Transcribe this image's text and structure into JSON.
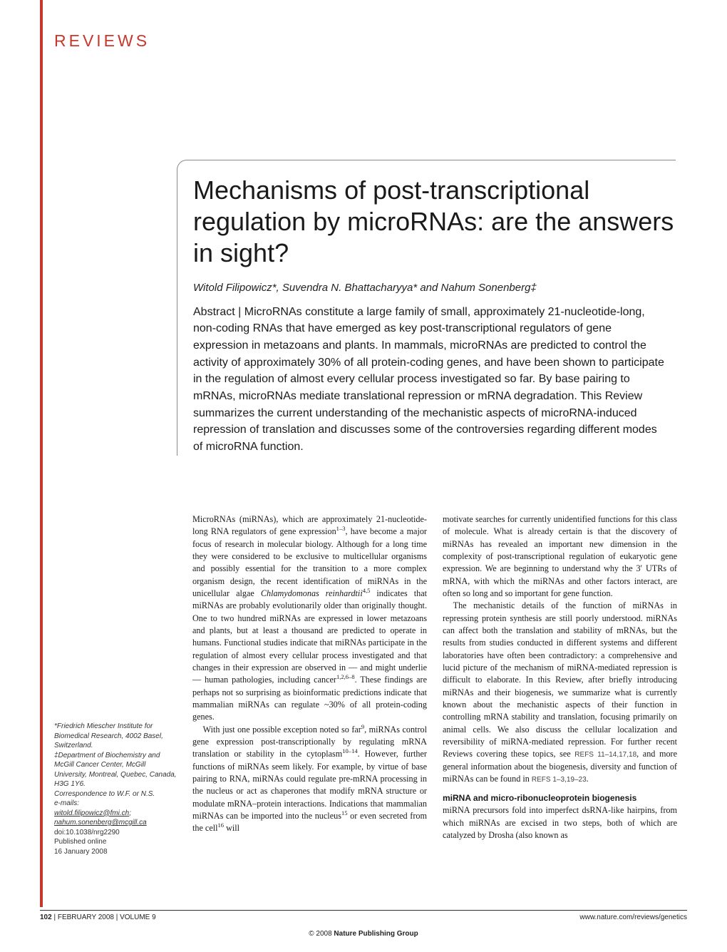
{
  "header": {
    "section_label": "REVIEWS"
  },
  "article": {
    "title": "Mechanisms of post-transcriptional regulation by microRNAs: are the answers in sight?",
    "authors": "Witold Filipowicz*, Suvendra N. Bhattacharyya* and Nahum Sonenberg‡",
    "abstract": "Abstract | MicroRNAs constitute a large family of small, approximately 21-nucleotide-long, non-coding RNAs that have emerged as key post-transcriptional regulators of gene expression in metazoans and plants. In mammals, microRNAs are predicted to control the activity of approximately 30% of all protein-coding genes, and have been shown to participate in the regulation of almost every cellular process investigated so far. By base pairing to mRNAs, microRNAs mediate translational repression or mRNA degradation. This Review summarizes the current understanding of the mechanistic aspects of microRNA-induced repression of translation and discusses some of the controversies regarding different modes of microRNA function."
  },
  "body": {
    "left": {
      "p1a": "MicroRNAs (miRNAs), which are approximately 21-nucleotide-long RNA regulators of gene expression",
      "p1b": ", have become a major focus of research in molecular biology. Although for a long time they were considered to be exclusive to multicellular organisms and possibly essential for the transition to a more complex organism design, the recent identification of miRNAs in the unicellular algae ",
      "p1c": " indicates that miRNAs are probably evolutionarily older than originally thought. One to two hundred miRNAs are expressed in lower metazoans and plants, but at least a thousand are predicted to operate in humans. Functional studies indicate that miRNAs participate in the regulation of almost every cellular process investigated and that changes in their expression are observed in — and might underlie — human pathologies, including cancer",
      "p1d": ". These findings are perhaps not so surprising as bioinformatic predictions indicate that mammalian miRNAs can regulate ~30% of all protein-coding genes.",
      "p2a": "With just one possible exception noted so far",
      "p2b": ", miRNAs control gene expression post-transcriptionally by regulating mRNA translation or stability in the cytoplasm",
      "p2c": ". However, further functions of miRNAs seem likely. For example, by virtue of base pairing to RNA, miRNAs could regulate pre-mRNA processing in the nucleus or act as chaperones that modify mRNA structure or modulate mRNA–protein interactions. Indications that mammalian miRNAs can be imported into the nucleus",
      "p2d": " or even secreted from the cell",
      "p2e": " will",
      "species": "Chlamydomonas reinhardtii",
      "sup1": "1–3",
      "sup2": "4,5",
      "sup3": "1,2,6–8",
      "sup4": "9",
      "sup5": "10–14",
      "sup6": "15",
      "sup7": "16"
    },
    "right": {
      "p1": "motivate searches for currently unidentified functions for this class of molecule. What is already certain is that the discovery of miRNAs has revealed an important new dimension in the complexity of post-transcriptional regulation of eukaryotic gene expression. We are beginning to understand why the 3′ UTRs of mRNA, with which the miRNAs and other factors interact, are often so long and so important for gene function.",
      "p2a": "The mechanistic details of the function of miRNAs in repressing protein synthesis are still poorly understood. miRNAs can affect both the translation and stability of mRNAs, but the results from studies conducted in different systems and different laboratories have often been contradictory: a comprehensive and lucid picture of the mechanism of miRNA-mediated repression is difficult to elaborate. In this Review, after briefly introducing miRNAs and their biogenesis, we summarize what is currently known about the mechanistic aspects of their function in controlling mRNA stability and translation, focusing primarily on animal cells. We also discuss the cellular localization and reversibility of miRNA-mediated repression. For further recent Reviews covering these topics, see ",
      "refs1": "REFS 11–14,17,18",
      "p2b": ", and more general information about the biogenesis, diversity and function of miRNAs can be found in ",
      "refs2": "REFS 1–3,19–23",
      "p2c": ".",
      "subhead": "miRNA and micro-ribonucleoprotein biogenesis",
      "p3": "miRNA precursors fold into imperfect dsRNA-like hairpins, from which miRNAs are excised in two steps, both of which are catalyzed by Drosha (also known as"
    }
  },
  "affiliations": {
    "line1": "*Friedrich Miescher Institute for Biomedical Research, 4002 Basel, Switzerland.",
    "line2": "‡Department of Biochemistry and McGill Cancer Center, McGill University, Montreal, Quebec, Canada, H3G 1Y6.",
    "line3": "Correspondence to W.F. or N.S.",
    "emails_label": "e-mails:",
    "email1": "witold.filipowicz@fmi.ch",
    "email2": "nahum.sonenberg@mcgill.ca",
    "doi": "doi:10.1038/nrg2290",
    "published": "Published online",
    "pub_date": "16 January 2008"
  },
  "footer": {
    "page": "102",
    "issue": " | FEBRUARY 2008 | VOLUME 9",
    "url": "www.nature.com/reviews/genetics",
    "copyright_year": "© 2008 ",
    "copyright_holder": "Nature Publishing Group"
  },
  "colors": {
    "accent": "#c8372d",
    "text": "#1a1a1a",
    "rule": "#888888"
  }
}
